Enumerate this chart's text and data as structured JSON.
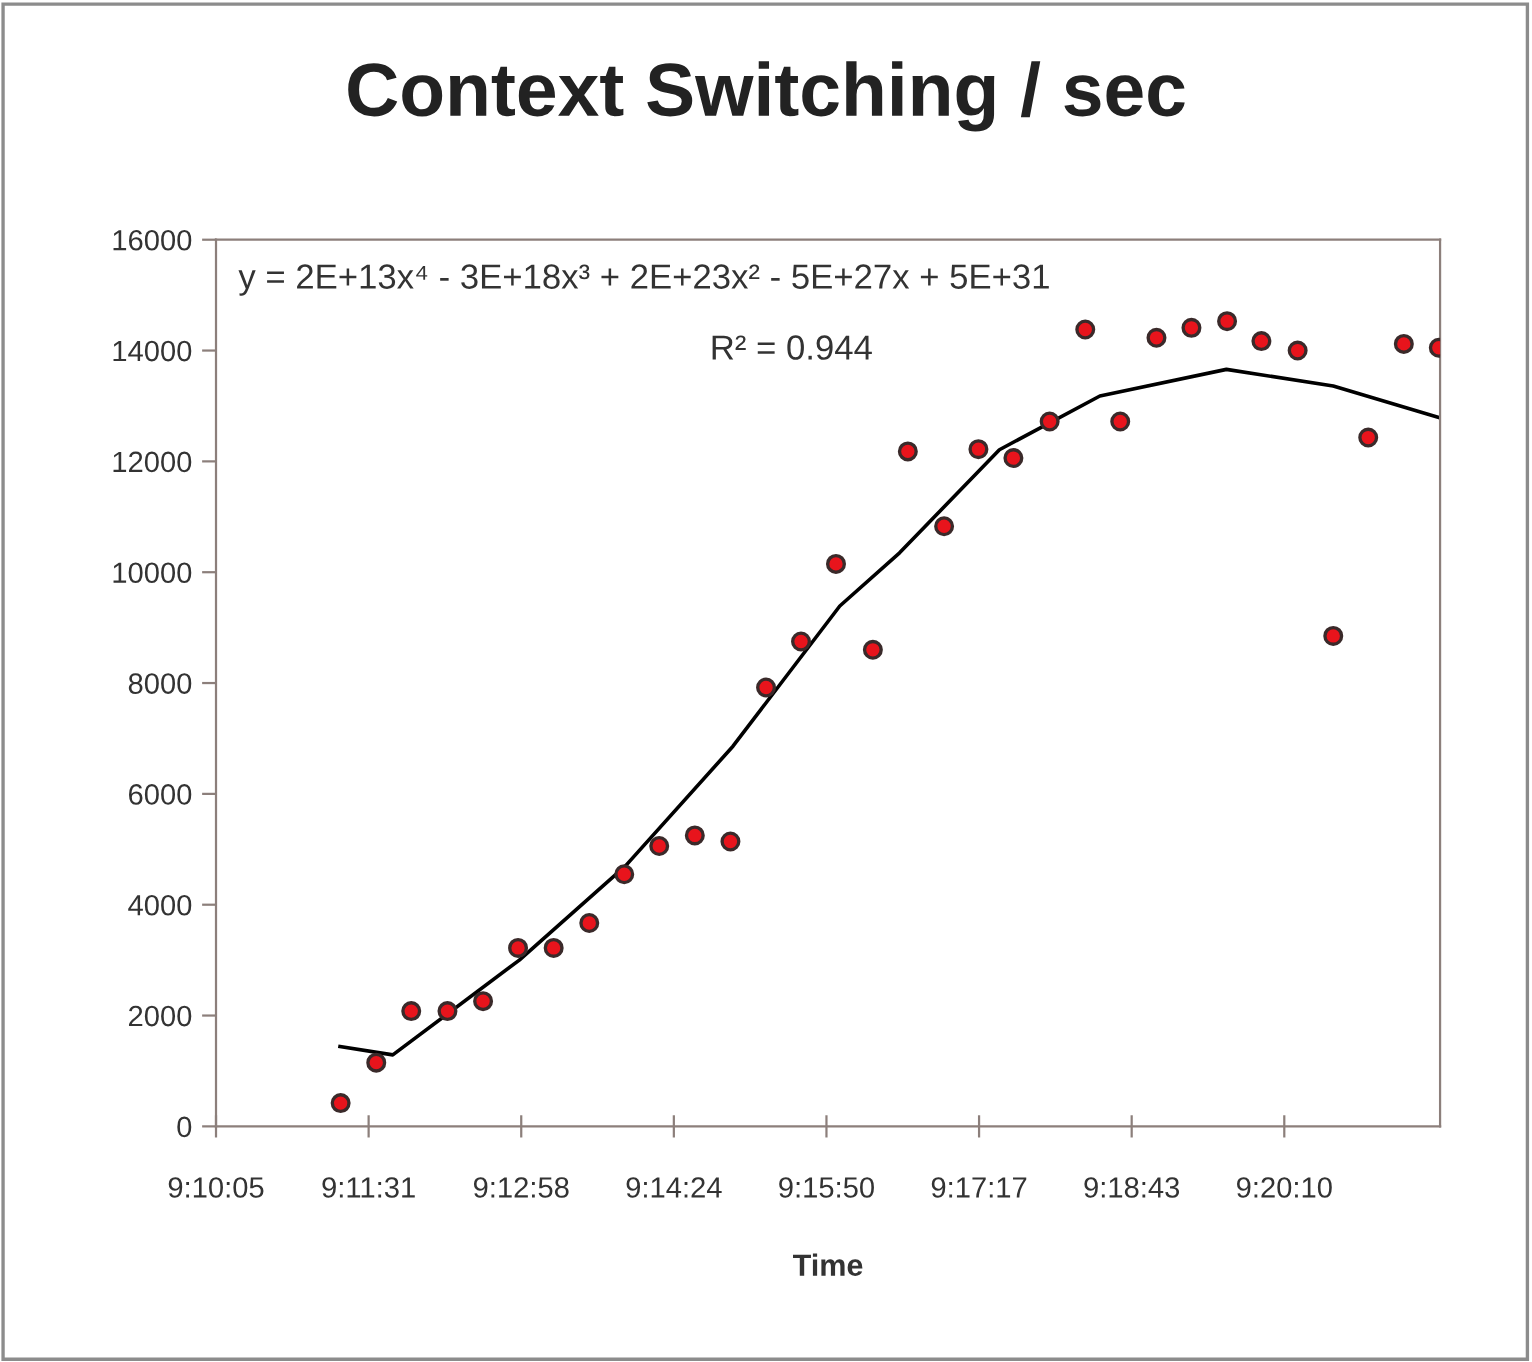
{
  "chart_data": {
    "type": "scatter",
    "title": "Context Switching / sec",
    "xlabel": "Time",
    "annotations": [
      "y = 2E+13x⁴ - 3E+18x³ + 2E+23x² - 5E+27x + 5E+31",
      "R² = 0.944"
    ],
    "xlim": [
      9.168,
      9.3605
    ],
    "ylim": [
      0,
      16000
    ],
    "xticks": [
      {
        "value": 9.168,
        "label": "9:10:05"
      },
      {
        "value": 9.192,
        "label": "9:11:31"
      },
      {
        "value": 9.216,
        "label": "9:12:58"
      },
      {
        "value": 9.24,
        "label": "9:14:24"
      },
      {
        "value": 9.264,
        "label": "9:15:50"
      },
      {
        "value": 9.288,
        "label": "9:17:17"
      },
      {
        "value": 9.312,
        "label": "9:18:43"
      },
      {
        "value": 9.336,
        "label": "9:20:10"
      }
    ],
    "yticks": [
      0,
      2000,
      4000,
      6000,
      8000,
      10000,
      12000,
      14000,
      16000
    ],
    "series": [
      {
        "marker": "circle",
        "color": "#e8141c",
        "x": [
          9.1876,
          9.1932,
          9.1987,
          9.2044,
          9.21,
          9.2155,
          9.2211,
          9.2267,
          9.2322,
          9.2377,
          9.2433,
          9.2489,
          9.2545,
          9.26,
          9.2655,
          9.2713,
          9.2768,
          9.2825,
          9.2879,
          9.2934,
          9.2991,
          9.3047,
          9.3102,
          9.3159,
          9.3214,
          9.327,
          9.3324,
          9.3381,
          9.3437,
          9.3492,
          9.3548,
          9.3603
        ],
        "values": [
          420,
          1150,
          2080,
          2080,
          2260,
          3220,
          3220,
          3670,
          4550,
          5060,
          5250,
          5140,
          7920,
          8750,
          10150,
          8600,
          12180,
          10830,
          12220,
          12060,
          12720,
          14380,
          12720,
          14230,
          14410,
          14530,
          14170,
          14000,
          8850,
          12430,
          14120,
          14050
        ]
      },
      {
        "type": "line",
        "marker": "none",
        "line_style": "solid",
        "color": "#000000",
        "x": [
          9.1875,
          9.1958,
          9.2157,
          9.2324,
          9.2493,
          9.2661,
          9.2755,
          9.2912,
          9.307,
          9.3269,
          9.3437,
          9.3603
        ],
        "values": [
          1440,
          1290,
          3000,
          4700,
          6860,
          9390,
          10350,
          12210,
          13180,
          13660,
          13360,
          12790
        ]
      }
    ]
  }
}
